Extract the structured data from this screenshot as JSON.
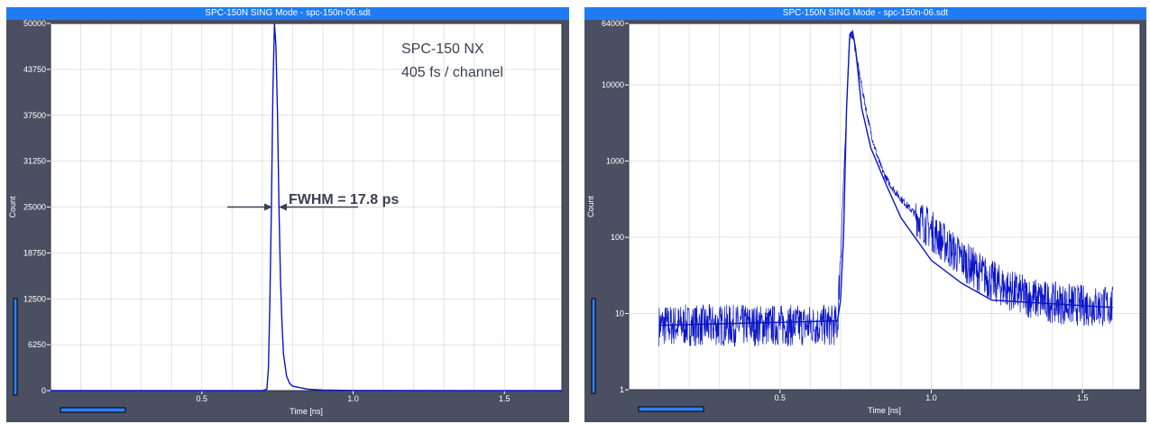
{
  "panels": [
    {
      "title": "SPC-150N  SING Mode - spc-150n-06.sdt"
    },
    {
      "title": "SPC-150N  SING Mode - spc-150n-06.sdt"
    }
  ],
  "colors": {
    "trace": "#0a14c8",
    "frame": "#4a5062",
    "titlebar": "#1f7cf2",
    "annotation": "#3a3f52",
    "indicator": "#2f7ff5"
  },
  "chart_data": [
    {
      "type": "line",
      "scale": "linear",
      "title": "",
      "xlabel": "Time [ns]",
      "ylabel": "Count",
      "xlim": [
        0,
        1.69
      ],
      "ylim": [
        0,
        50000
      ],
      "x_ticks": [
        {
          "value": 0.5,
          "label": "0.5"
        },
        {
          "value": 1.0,
          "label": "1.0"
        },
        {
          "value": 1.5,
          "label": "1.5"
        }
      ],
      "y_ticks": [
        {
          "value": 0,
          "label": "0"
        },
        {
          "value": 6250,
          "label": "6250"
        },
        {
          "value": 12500,
          "label": "12500"
        },
        {
          "value": 18750,
          "label": "18750"
        },
        {
          "value": 25000,
          "label": "25000"
        },
        {
          "value": 31250,
          "label": "31250"
        },
        {
          "value": 37500,
          "label": "37500"
        },
        {
          "value": 43750,
          "label": "43750"
        },
        {
          "value": 50000,
          "label": "50000"
        }
      ],
      "grid": true,
      "series": [
        {
          "x": [
            0.0,
            0.7,
            0.715,
            0.72,
            0.725,
            0.73,
            0.735,
            0.74,
            0.745,
            0.75,
            0.755,
            0.76,
            0.765,
            0.77,
            0.78,
            0.79,
            0.8,
            0.85,
            0.9,
            1.0,
            1.69
          ],
          "y": [
            0,
            0,
            200,
            3000,
            12000,
            25000,
            41000,
            50000,
            47000,
            38000,
            25000,
            15000,
            9000,
            5000,
            2000,
            1000,
            600,
            200,
            80,
            20,
            0
          ]
        }
      ],
      "annotations": [
        {
          "text": "SPC-150 NX"
        },
        {
          "text": "405 fs / channel"
        },
        {
          "text": "FWHM = 17.8 ps"
        }
      ]
    },
    {
      "type": "line",
      "scale": "log",
      "title": "",
      "xlabel": "Time [ns]",
      "ylabel": "Count",
      "xlim": [
        0,
        1.69
      ],
      "ylim": [
        1,
        64000
      ],
      "x_ticks": [
        {
          "value": 0.5,
          "label": "0.5"
        },
        {
          "value": 1.0,
          "label": "1.0"
        },
        {
          "value": 1.5,
          "label": "1.5"
        }
      ],
      "y_ticks": [
        {
          "value": 1,
          "label": "1"
        },
        {
          "value": 10,
          "label": "10"
        },
        {
          "value": 100,
          "label": "100"
        },
        {
          "value": 1000,
          "label": "1000"
        },
        {
          "value": 10000,
          "label": "10000"
        },
        {
          "value": 64000,
          "label": "64000"
        }
      ],
      "grid": true,
      "series": [
        {
          "x": [
            0.1,
            0.69,
            0.7,
            0.71,
            0.72,
            0.73,
            0.74,
            0.75,
            0.77,
            0.8,
            0.85,
            0.9,
            1.0,
            1.1,
            1.2,
            1.6
          ],
          "y": [
            7,
            8,
            15,
            100,
            5000,
            40000,
            50000,
            30000,
            5000,
            1500,
            500,
            180,
            50,
            25,
            15,
            12
          ]
        }
      ]
    }
  ]
}
